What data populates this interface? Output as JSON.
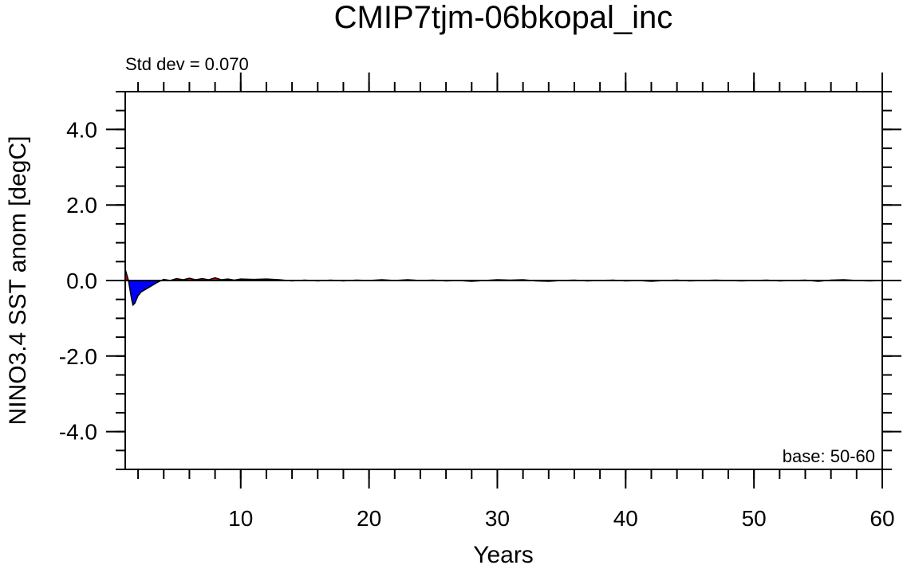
{
  "chart_data": {
    "type": "area",
    "title": "CMIP7tjm-06bkopal_inc",
    "subtitle": "Std dev = 0.070",
    "annotation": "base: 50-60",
    "x_label": "Years",
    "y_label": "NINO3.4 SST anom [degC]",
    "above_color": "#e00000",
    "below_color": "#0000ff",
    "line_color": "#000000",
    "x": [
      1,
      1.25,
      1.5,
      1.6,
      1.75,
      2,
      2.25,
      2.5,
      3,
      3.5,
      4,
      4.5,
      5,
      5.5,
      6,
      6.5,
      7,
      7.5,
      8,
      8.5,
      9,
      9.5,
      10,
      11,
      12,
      13,
      14,
      15,
      16,
      17,
      18,
      19,
      20,
      21,
      22,
      23,
      24,
      25,
      26,
      27,
      28,
      29,
      30,
      31,
      32,
      33,
      34,
      35,
      36,
      37,
      38,
      39,
      40,
      41,
      42,
      43,
      44,
      45,
      46,
      47,
      48,
      49,
      50,
      51,
      52,
      53,
      54,
      55,
      56,
      57,
      58,
      59,
      60
    ],
    "values": [
      0.3,
      0.0,
      -0.5,
      -0.65,
      -0.6,
      -0.4,
      -0.3,
      -0.25,
      -0.15,
      -0.05,
      0.03,
      0.0,
      0.05,
      0.02,
      0.06,
      0.02,
      0.05,
      0.02,
      0.07,
      0.02,
      0.04,
      0.01,
      0.04,
      0.03,
      0.04,
      0.02,
      -0.01,
      0.01,
      -0.01,
      0.01,
      -0.01,
      0.01,
      0.0,
      0.02,
      0.0,
      0.02,
      0.0,
      0.01,
      -0.01,
      0.0,
      -0.02,
      0.0,
      0.02,
      0.01,
      0.02,
      -0.01,
      -0.02,
      0.0,
      0.01,
      -0.01,
      0.0,
      0.01,
      -0.01,
      0.0,
      -0.02,
      0.0,
      0.01,
      -0.01,
      0.0,
      0.01,
      0.0,
      -0.01,
      0.0,
      0.01,
      -0.01,
      0.0,
      0.01,
      -0.02,
      0.01,
      0.02,
      0.0,
      -0.01,
      0.0
    ],
    "xlim": [
      1,
      60
    ],
    "xticks": [
      10,
      20,
      30,
      40,
      50,
      60
    ],
    "x_minor_step": 2,
    "ylim": [
      -5,
      5
    ],
    "yticks": [
      {
        "value": -4,
        "label": "-4.0"
      },
      {
        "value": -2,
        "label": "-2.0"
      },
      {
        "value": 0,
        "label": "0.0"
      },
      {
        "value": 2,
        "label": "2.0"
      },
      {
        "value": 4,
        "label": "4.0"
      }
    ],
    "y_minor_step": 0.5,
    "reference_line": 0
  }
}
